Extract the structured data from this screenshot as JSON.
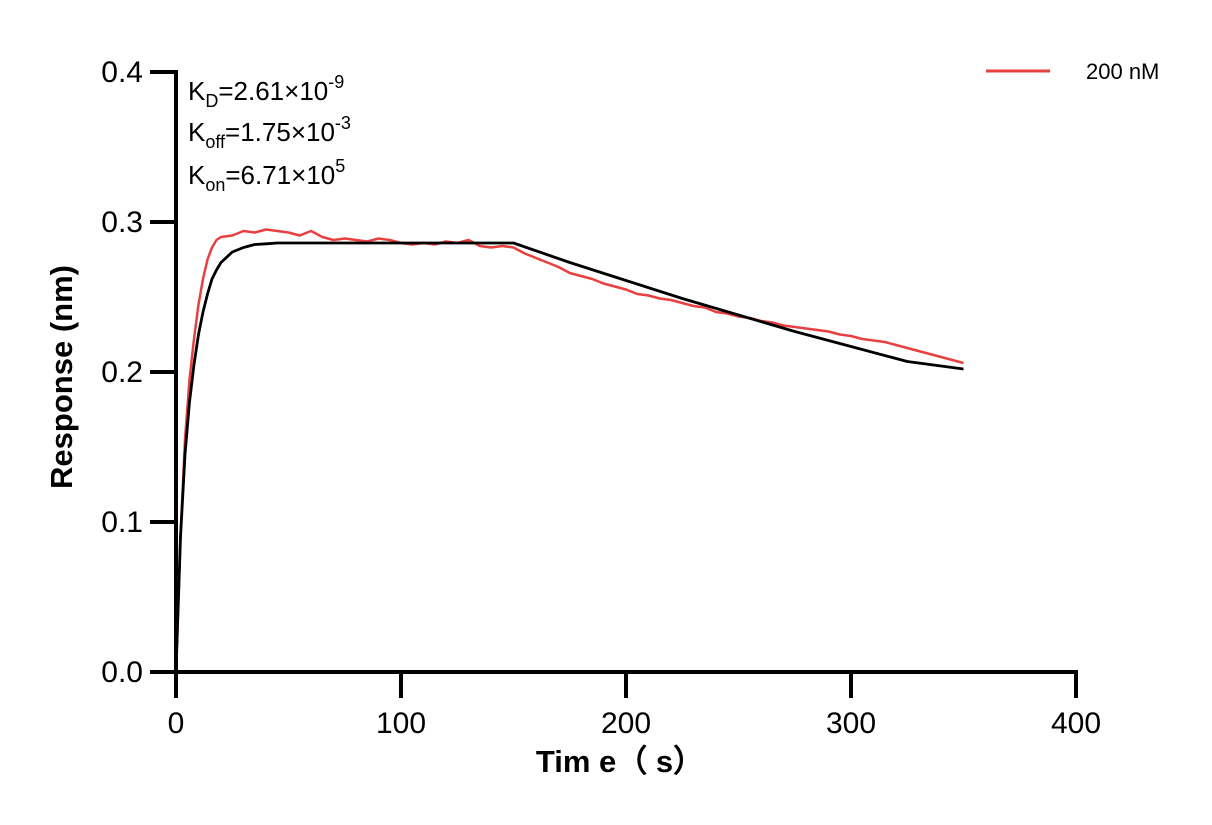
{
  "chart_data": {
    "type": "line",
    "xlabel": "Tim e（ s）",
    "ylabel": "Response (nm)",
    "xlim": [
      0,
      400
    ],
    "ylim": [
      0,
      0.4
    ],
    "x_ticks": [
      "0",
      "100",
      "200",
      "300",
      "400"
    ],
    "y_ticks": [
      "0.0",
      "0.1",
      "0.2",
      "0.3",
      "0.4"
    ],
    "grid": false,
    "legend_position": "top-right",
    "annotations": {
      "kd": {
        "main": "K",
        "sub": "D",
        "value": "=2.61×10",
        "exp": "-9"
      },
      "koff": {
        "main": "K",
        "sub": "off",
        "value": "=1.75×10",
        "exp": "-3"
      },
      "kon": {
        "main": "K",
        "sub": "on",
        "value": "=6.71×10",
        "exp": "5"
      }
    },
    "series": [
      {
        "name": "200 nM",
        "color": "#e8403f",
        "x": [
          0,
          2,
          4,
          6,
          8,
          10,
          12,
          14,
          16,
          18,
          20,
          25,
          30,
          35,
          40,
          45,
          50,
          55,
          60,
          65,
          70,
          75,
          80,
          85,
          90,
          95,
          100,
          105,
          110,
          115,
          120,
          125,
          130,
          135,
          140,
          145,
          150,
          155,
          160,
          165,
          170,
          175,
          180,
          185,
          190,
          195,
          200,
          205,
          210,
          215,
          220,
          225,
          230,
          235,
          240,
          245,
          250,
          255,
          260,
          265,
          270,
          275,
          280,
          285,
          290,
          295,
          300,
          305,
          310,
          315,
          320,
          325,
          330,
          335,
          340,
          345,
          350
        ],
        "y": [
          0.0,
          0.09,
          0.155,
          0.195,
          0.222,
          0.245,
          0.262,
          0.275,
          0.283,
          0.288,
          0.29,
          0.291,
          0.294,
          0.293,
          0.295,
          0.294,
          0.293,
          0.291,
          0.294,
          0.29,
          0.288,
          0.289,
          0.288,
          0.287,
          0.289,
          0.288,
          0.286,
          0.285,
          0.286,
          0.285,
          0.287,
          0.286,
          0.288,
          0.284,
          0.283,
          0.284,
          0.283,
          0.279,
          0.276,
          0.273,
          0.27,
          0.266,
          0.264,
          0.262,
          0.259,
          0.257,
          0.255,
          0.252,
          0.251,
          0.249,
          0.248,
          0.246,
          0.244,
          0.243,
          0.24,
          0.239,
          0.237,
          0.236,
          0.234,
          0.233,
          0.231,
          0.23,
          0.229,
          0.228,
          0.227,
          0.225,
          0.224,
          0.222,
          0.221,
          0.22,
          0.218,
          0.216,
          0.214,
          0.212,
          0.21,
          0.208,
          0.206
        ]
      },
      {
        "name": "",
        "color": "#000000",
        "x": [
          0,
          2,
          4,
          6,
          8,
          10,
          12,
          14,
          16,
          18,
          20,
          25,
          30,
          35,
          40,
          45,
          50,
          60,
          70,
          80,
          90,
          100,
          110,
          120,
          130,
          140,
          150,
          175,
          200,
          225,
          250,
          275,
          300,
          325,
          350
        ],
        "y": [
          0.0,
          0.09,
          0.145,
          0.18,
          0.205,
          0.225,
          0.24,
          0.252,
          0.262,
          0.268,
          0.273,
          0.28,
          0.283,
          0.285,
          0.2855,
          0.286,
          0.286,
          0.286,
          0.286,
          0.286,
          0.286,
          0.286,
          0.286,
          0.286,
          0.286,
          0.286,
          0.286,
          0.273,
          0.261,
          0.249,
          0.238,
          0.227,
          0.217,
          0.207,
          0.202
        ]
      }
    ]
  }
}
